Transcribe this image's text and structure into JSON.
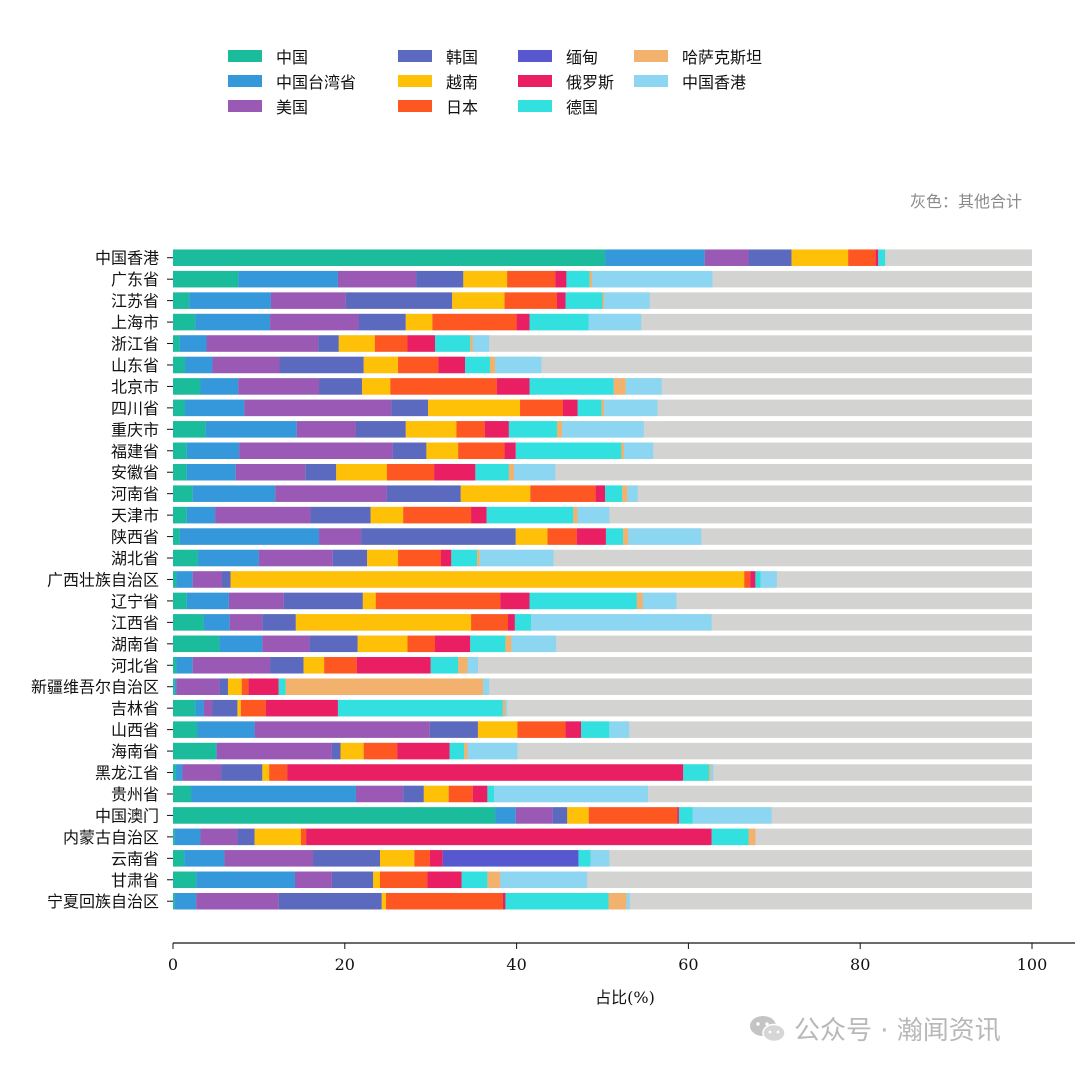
{
  "note_text": "灰色：其他合计",
  "watermark_text": "公众号 · 瀚闻资讯",
  "chart_data": {
    "type": "bar",
    "orientation": "horizontal",
    "stacked": true,
    "xlabel": "占比(%)",
    "xlim": [
      0,
      100
    ],
    "xticks": [
      0,
      20,
      40,
      60,
      80,
      100
    ],
    "remainder_label": "其他合计",
    "remainder_color": "#d3d3d1",
    "categories": [
      "中国香港",
      "广东省",
      "江苏省",
      "上海市",
      "浙江省",
      "山东省",
      "北京市",
      "四川省",
      "重庆市",
      "福建省",
      "安徽省",
      "河南省",
      "天津市",
      "陕西省",
      "湖北省",
      "广西壮族自治区",
      "辽宁省",
      "江西省",
      "湖南省",
      "河北省",
      "新疆维吾尔自治区",
      "吉林省",
      "山西省",
      "海南省",
      "黑龙江省",
      "贵州省",
      "中国澳门",
      "内蒙古自治区",
      "云南省",
      "甘肃省",
      "宁夏回族自治区"
    ],
    "series": [
      {
        "name": "中国",
        "color": "#1abc9c",
        "values": [
          50.3,
          7.6,
          1.9,
          2.6,
          0.8,
          1.4,
          3.2,
          1.4,
          3.8,
          1.6,
          1.6,
          2.3,
          1.6,
          0.8,
          2.9,
          0.4,
          1.6,
          3.6,
          5.4,
          0.4,
          0.2,
          2.6,
          2.8,
          5.0,
          0.3,
          2.1,
          37.5,
          0.2,
          1.3,
          2.7,
          0.2
        ]
      },
      {
        "name": "中国台湾省",
        "color": "#3498db",
        "values": [
          11.6,
          11.6,
          9.5,
          8.7,
          3.1,
          3.2,
          4.4,
          6.9,
          10.6,
          6.1,
          5.7,
          9.6,
          3.3,
          16.2,
          7.1,
          1.9,
          4.9,
          3.0,
          5.0,
          1.9,
          0.2,
          1.0,
          6.7,
          0.1,
          0.8,
          19.2,
          2.4,
          3.0,
          4.7,
          11.5,
          2.5
        ]
      },
      {
        "name": "美国",
        "color": "#9b59b6",
        "values": [
          5.1,
          9.1,
          8.7,
          10.3,
          13.0,
          7.8,
          9.4,
          17.1,
          6.9,
          17.9,
          8.1,
          13.0,
          11.1,
          4.9,
          8.6,
          3.4,
          6.4,
          3.8,
          5.5,
          9.0,
          5.0,
          1.0,
          20.4,
          13.4,
          4.5,
          5.5,
          4.3,
          4.3,
          10.3,
          4.3,
          9.6
        ]
      },
      {
        "name": "韩国",
        "color": "#5b6abf",
        "values": [
          5.0,
          5.5,
          12.4,
          5.5,
          2.4,
          9.8,
          5.0,
          4.3,
          5.8,
          3.9,
          3.6,
          8.6,
          7.0,
          18.0,
          4.0,
          1.0,
          9.2,
          3.9,
          5.6,
          3.9,
          1.0,
          2.9,
          5.6,
          1.0,
          4.8,
          2.4,
          1.7,
          2.0,
          7.8,
          4.8,
          12.0
        ]
      },
      {
        "name": "越南",
        "color": "#ffc107",
        "values": [
          6.6,
          5.1,
          6.1,
          3.1,
          4.2,
          4.0,
          3.3,
          10.7,
          5.9,
          3.7,
          5.9,
          8.1,
          3.8,
          3.7,
          3.6,
          59.8,
          1.5,
          20.4,
          5.8,
          2.4,
          1.6,
          0.4,
          4.6,
          2.7,
          0.8,
          2.9,
          2.5,
          5.4,
          4.0,
          0.8,
          0.5
        ]
      },
      {
        "name": "日本",
        "color": "#ff5722",
        "values": [
          3.2,
          5.6,
          6.1,
          9.8,
          3.8,
          4.7,
          12.4,
          5.0,
          3.3,
          5.4,
          5.5,
          7.6,
          7.9,
          3.4,
          5.0,
          0.7,
          14.5,
          4.3,
          3.2,
          3.8,
          0.8,
          2.9,
          5.6,
          3.9,
          2.1,
          2.8,
          10.3,
          0.6,
          1.8,
          5.5,
          13.6
        ]
      },
      {
        "name": "俄罗斯",
        "color": "#e91e63",
        "values": [
          0.3,
          1.3,
          1.0,
          1.5,
          3.2,
          3.1,
          3.8,
          1.7,
          2.8,
          1.3,
          4.8,
          1.1,
          1.8,
          3.4,
          1.2,
          0.6,
          3.4,
          0.8,
          4.1,
          8.6,
          3.5,
          8.4,
          1.8,
          6.1,
          46.1,
          1.7,
          0.2,
          47.2,
          1.5,
          4.0,
          0.3
        ]
      },
      {
        "name": "德国",
        "color": "#33e0e0",
        "values": [
          0.8,
          2.7,
          4.3,
          6.9,
          4.1,
          2.9,
          9.8,
          2.8,
          5.6,
          12.3,
          3.9,
          2.0,
          10.1,
          2.0,
          3.0,
          0.6,
          12.5,
          1.9,
          4.1,
          3.2,
          0.8,
          19.2,
          3.3,
          1.7,
          3.0,
          0.8,
          1.6,
          4.3,
          1.4,
          3.0,
          12.0
        ]
      },
      {
        "name": "哈萨克斯坦",
        "color": "#f2b26d",
        "values": [
          0,
          0.3,
          0.2,
          0,
          0.3,
          0.6,
          1.4,
          0.3,
          0.6,
          0.3,
          0.6,
          0.6,
          0.5,
          0.6,
          0.3,
          0,
          0.7,
          0,
          0.7,
          1.1,
          23.0,
          0.3,
          0,
          0.4,
          0.2,
          0,
          0,
          0.8,
          0,
          1.5,
          2.1
        ]
      },
      {
        "name": "中国香港",
        "color": "#8dd6f2",
        "values": [
          0,
          14.0,
          5.3,
          6.1,
          1.9,
          5.4,
          4.2,
          6.2,
          9.5,
          3.4,
          4.8,
          1.2,
          3.7,
          8.5,
          8.6,
          1.9,
          3.9,
          21.0,
          5.2,
          1.2,
          0.7,
          0.2,
          2.3,
          5.8,
          0.3,
          17.9,
          9.2,
          0,
          2.2,
          10.1,
          0.4
        ]
      },
      {
        "name": "缅甸",
        "color": "#5757d0",
        "values": [
          0,
          0,
          0,
          0,
          0,
          0,
          0,
          0,
          0,
          0,
          0,
          0,
          0,
          0,
          0,
          0,
          0,
          0,
          0,
          0,
          0,
          0,
          0,
          0,
          0,
          0,
          0,
          0,
          15.8,
          0,
          0
        ]
      }
    ],
    "legend": {
      "placement": "top",
      "columns": 5,
      "entries": [
        "中国",
        "中国台湾省",
        "美国",
        "韩国",
        "越南",
        "日本",
        "缅甸",
        "俄罗斯",
        "德国",
        "哈萨克斯坦",
        "中国香港"
      ]
    }
  }
}
